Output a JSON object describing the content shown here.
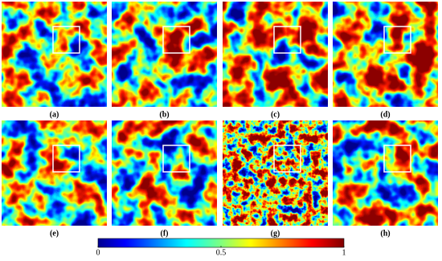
{
  "figure": {
    "panels": [
      "(a)",
      "(b)",
      "(c)",
      "(d)",
      "(e)",
      "(f)",
      "(g)",
      "(h)"
    ],
    "colorbar": {
      "lim": [
        0,
        1
      ],
      "ticks": [
        0,
        0.5,
        1
      ]
    }
  }
}
